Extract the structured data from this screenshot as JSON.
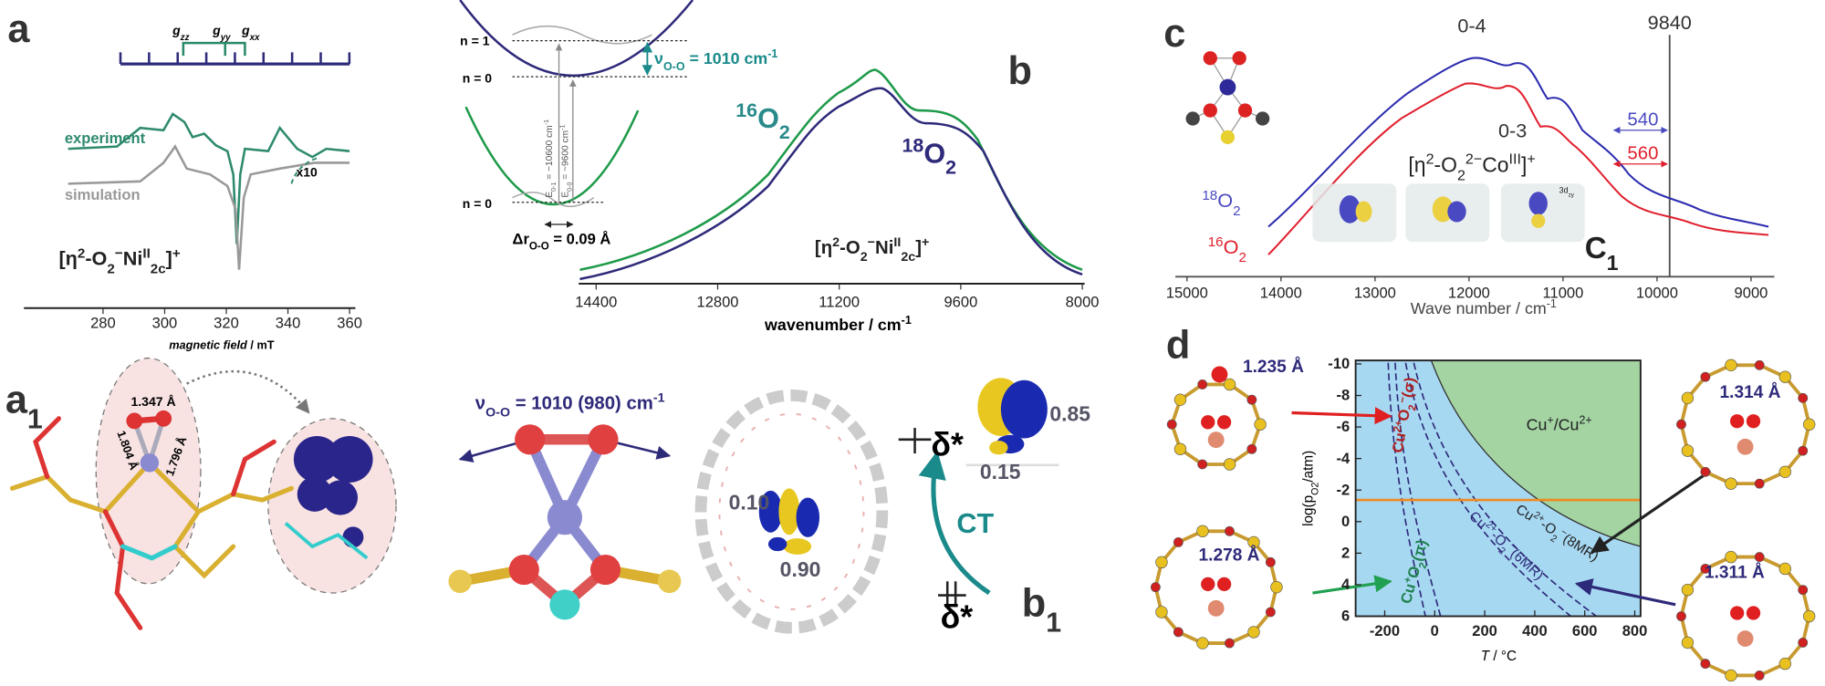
{
  "panel_a": {
    "label": "a",
    "g_labels": [
      [
        {
          "text": "g"
        },
        {
          "sub": "zz"
        }
      ],
      [
        {
          "text": "g"
        },
        {
          "sub": "yy"
        }
      ],
      [
        {
          "text": "g"
        },
        {
          "sub": "xx"
        }
      ]
    ],
    "experiment": "experiment",
    "simulation": "simulation",
    "scale": "x10",
    "formula": [
      {
        "text": "[η"
      },
      {
        "sup": "2"
      },
      {
        "text": "-O"
      },
      {
        "sub": "2"
      },
      {
        "sup": "−"
      },
      {
        "text": "Ni"
      },
      {
        "sup": "II"
      },
      {
        "sub": "2c"
      },
      {
        "text": "]"
      },
      {
        "sup": "+"
      }
    ],
    "xticks": [
      280,
      300,
      320,
      340,
      360
    ],
    "xlabel": [
      {
        "italic": "magnetic field"
      },
      {
        "text": " / mT"
      }
    ]
  },
  "panel_a1": {
    "label": [
      {
        "text": "a"
      },
      {
        "sub": "1"
      }
    ],
    "distances": [
      "1.347 Å",
      "1.804 Å",
      "1.796 Å"
    ]
  },
  "panel_b": {
    "label": "b",
    "levels": [
      "n = 1",
      "n = 0",
      "n = 0"
    ],
    "vibration": [
      {
        "text": "ν"
      },
      {
        "sub": "O-O"
      },
      {
        "text": " = 1010 cm"
      },
      {
        "sup": "-1"
      }
    ],
    "e01": [
      {
        "text": "E"
      },
      {
        "sub": "0-1"
      },
      {
        "text": " = ~10600 cm"
      },
      {
        "sup": "-1"
      }
    ],
    "e00": [
      {
        "text": "E"
      },
      {
        "sub": "0-0"
      },
      {
        "text": " = ~9600 cm"
      },
      {
        "sup": "-1"
      }
    ],
    "dr": [
      {
        "text": "Δr"
      },
      {
        "sub": "O-O"
      },
      {
        "text": " = 0.09 Å"
      }
    ],
    "o16": [
      {
        "sup": "16"
      },
      {
        "text": "O"
      },
      {
        "sub": "2"
      }
    ],
    "o18": [
      {
        "sup": "18"
      },
      {
        "text": "O"
      },
      {
        "sub": "2"
      }
    ],
    "formula": [
      {
        "text": "[η"
      },
      {
        "sup": "2"
      },
      {
        "text": "-O"
      },
      {
        "sub": "2"
      },
      {
        "sup": "−"
      },
      {
        "text": "Ni"
      },
      {
        "sup": "II"
      },
      {
        "sub": "2c"
      },
      {
        "text": "]"
      },
      {
        "sup": "+"
      }
    ],
    "xticks": [
      14400,
      12800,
      11200,
      9600,
      8000
    ],
    "xlabel": [
      {
        "text": "wavenumber / cm"
      },
      {
        "sup": "-1"
      }
    ]
  },
  "panel_b1": {
    "label": [
      {
        "text": "b"
      },
      {
        "sub": "1"
      }
    ],
    "vibration": [
      {
        "text": "ν"
      },
      {
        "sub": "O-O"
      },
      {
        "text": " = 1010 (980) cm"
      },
      {
        "sup": "-1"
      }
    ],
    "orbital_upper": "δ*",
    "orbital_lower": "δ*",
    "populations": [
      "0.85",
      "0.15",
      "0.10",
      "0.90"
    ],
    "ct": "CT"
  },
  "panel_c": {
    "label": "c",
    "peaks": [
      "0-4",
      "0-3"
    ],
    "line_label": "9840",
    "shift_18": "540",
    "shift_16": "560",
    "o18": [
      {
        "sup": "18"
      },
      {
        "text": "O"
      },
      {
        "sub": "2"
      }
    ],
    "o16": [
      {
        "sup": "16"
      },
      {
        "text": "O"
      },
      {
        "sub": "2"
      }
    ],
    "formula": [
      {
        "text": "[η"
      },
      {
        "sup": "2"
      },
      {
        "text": "-O"
      },
      {
        "sub": "2"
      },
      {
        "sup": "2−"
      },
      {
        "text": "Co"
      },
      {
        "sup": "III"
      },
      {
        "text": "]"
      },
      {
        "sup": "+"
      }
    ],
    "sublabel": [
      {
        "text": "C"
      },
      {
        "sub": "1"
      }
    ],
    "orbital": [
      {
        "text": "3d"
      },
      {
        "sub": "zy"
      }
    ],
    "xticks": [
      15000,
      14000,
      13000,
      12000,
      11000,
      10000,
      9000
    ],
    "xlabel": [
      {
        "text": "Wave number / cm"
      },
      {
        "sup": "-1"
      }
    ]
  },
  "panel_d": {
    "label": "d",
    "distances": [
      "1.235 Å",
      "1.278 Å",
      "1.314 Å",
      "1.311 Å"
    ],
    "sigma": [
      {
        "text": "Cu"
      },
      {
        "sup": "2+"
      },
      {
        "text": "O"
      },
      {
        "sub": "2"
      },
      {
        "sup": "−"
      },
      {
        "text": "(σ)"
      }
    ],
    "pi": [
      {
        "text": "Cu"
      },
      {
        "sup": "+"
      },
      {
        "text": "O"
      },
      {
        "sub": "2"
      },
      {
        "text": "(π)"
      }
    ],
    "mr6": [
      {
        "text": "Cu"
      },
      {
        "sup": "2+"
      },
      {
        "text": "-O"
      },
      {
        "sub": "2"
      },
      {
        "sup": "−"
      },
      {
        "text": "(6MR)"
      }
    ],
    "mr8": [
      {
        "text": "Cu"
      },
      {
        "sup": "2+"
      },
      {
        "text": "-O"
      },
      {
        "sub": "2"
      },
      {
        "sup": "−"
      },
      {
        "text": "(8MR)"
      }
    ],
    "mixed": [
      {
        "text": "Cu"
      },
      {
        "sup": "+"
      },
      {
        "text": "/Cu"
      },
      {
        "sup": "2+"
      }
    ],
    "yticks": [
      -10,
      -8,
      -6,
      -4,
      -2,
      0,
      2,
      4,
      6
    ],
    "xticks": [
      -200,
      0,
      200,
      400,
      600,
      800
    ],
    "ylabel": [
      {
        "text": "log(p"
      },
      {
        "sub": "O2"
      },
      {
        "text": "/atm)"
      }
    ],
    "xlabel": [
      {
        "italic": "T"
      },
      {
        "text": " / °C"
      }
    ]
  }
}
